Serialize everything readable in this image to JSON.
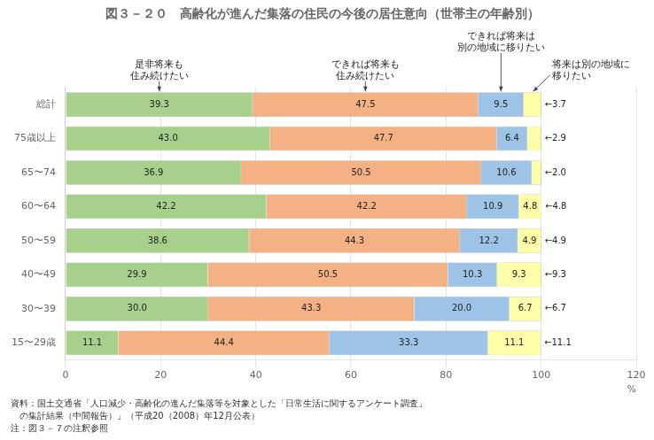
{
  "chart_data": {
    "type": "bar",
    "orientation": "horizontal",
    "stacked": true,
    "title": "図３－２０　高齢化が進んだ集落の住民の今後の居住意向（世帯主の年齢別）",
    "categories": [
      "総計",
      "75歳以上",
      "65〜74",
      "60〜64",
      "50〜59",
      "40〜49",
      "30〜39",
      "15〜29歳"
    ],
    "series": [
      {
        "name": "是非将来も\n住み続けたい",
        "color": "#a8d08d",
        "values": [
          39.3,
          43.0,
          36.9,
          42.2,
          38.6,
          29.9,
          30.0,
          11.1
        ],
        "value_labels": [
          "39.3",
          "43.0",
          "36.9",
          "42.2",
          "38.6",
          "29.9",
          "30.0",
          "11.1"
        ]
      },
      {
        "name": "できれば将来も\n住み続けたい",
        "color": "#f4b183",
        "values": [
          47.5,
          47.7,
          50.5,
          42.2,
          44.3,
          50.5,
          43.3,
          44.4
        ],
        "value_labels": [
          "47.5",
          "47.7",
          "50.5",
          "42.2",
          "44.3",
          "50.5",
          "43.3",
          "44.4"
        ]
      },
      {
        "name": "できれば将来は\n別の地域に移りたい",
        "color": "#9dc3e6",
        "values": [
          9.5,
          6.4,
          10.6,
          10.9,
          12.2,
          10.3,
          20.0,
          33.3
        ],
        "value_labels": [
          "9.5",
          "6.4",
          "10.6",
          "10.9",
          "12.2",
          "10.3",
          "20.0",
          "33.3"
        ]
      },
      {
        "name": "将来は別の地域に\n移りたい",
        "color": "#ffffaa",
        "values": [
          3.7,
          2.9,
          2.0,
          4.8,
          4.9,
          9.3,
          6.7,
          11.1
        ],
        "value_labels": [
          null,
          null,
          null,
          "4.8",
          "4.9",
          "9.3",
          "6.7",
          "11.1"
        ],
        "end_labels": [
          "←3.7",
          "←2.9",
          "←2.0",
          "←4.8",
          "←4.9",
          "←9.3",
          "←6.7",
          "←11.1"
        ]
      }
    ],
    "xlim": [
      0,
      120
    ],
    "xticks": [
      0,
      20,
      40,
      60,
      80,
      100,
      120
    ],
    "xlabel": "%",
    "grid": true,
    "data_labels": true,
    "footer": [
      "資料：国土交通省「人口減少・高齢化の進んだ集落等を対象とした「日常生活に関するアンケート調査」",
      "　の集計結果（中間報告）」（平成20（2008）年12月公表）",
      "注：図３－７の注釈参照"
    ]
  }
}
